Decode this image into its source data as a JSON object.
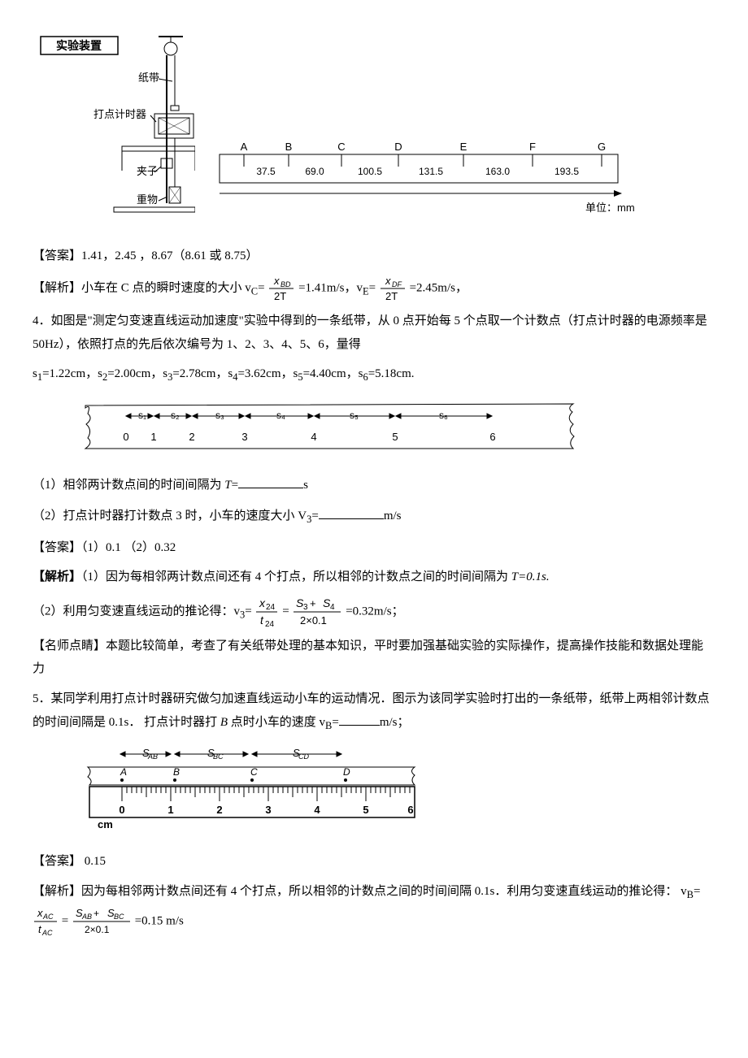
{
  "apparatus": {
    "title": "实验装置",
    "labels": {
      "tape": "纸带",
      "timer": "打点计时器",
      "clamp": "夹子",
      "weight": "重物"
    }
  },
  "tape1": {
    "points": [
      "A",
      "B",
      "C",
      "D",
      "E",
      "F",
      "G"
    ],
    "values": [
      "37.5",
      "69.0",
      "100.5",
      "131.5",
      "163.0",
      "193.5"
    ],
    "unit": "单位：mm"
  },
  "ans1": {
    "label": "【答案】",
    "text": "1.41，2.45 ，8.67（8.61 或 8.75）"
  },
  "sol1": {
    "label": "【解析】",
    "lead": "小车在 C 点的瞬时速度的大小 v",
    "sub_c": "C",
    "frac1_top": "x",
    "frac1_top_sub": "BD",
    "frac1_bot": "2T",
    "mid1": "=1.41m/s，v",
    "sub_e": "E",
    "frac2_top": "x",
    "frac2_top_sub": "DF",
    "frac2_bot": "2T",
    "mid2": "=2.45m/s，"
  },
  "q4": {
    "num": "4．",
    "p1": "如图是\"测定匀变速直线运动加速度\"实验中得到的一条纸带，从 0 点开始每 5 个点取一个计数点（打点计时器的电源频率是 50Hz），依照打点的先后依次编号为 1、2、3、4、5、6，量得",
    "p2_a": "s",
    "p2": "=1.22cm，s",
    "p2_2": "=2.00cm，s",
    "p2_3": "=2.78cm，s",
    "p2_4": "=3.62cm，s",
    "p2_5": "=4.40cm，s",
    "p2_6": "=5.18cm.",
    "tape_labels": [
      "s₁",
      "s₂",
      "s₃",
      "s₄",
      "s₅",
      "s₆"
    ],
    "tape_numbers": [
      "0",
      "1",
      "2",
      "3",
      "4",
      "5",
      "6"
    ],
    "sub1": "（1）相邻两计数点间的时间间隔为 ",
    "sub1_var": "T",
    "sub1_unit": "s",
    "sub2": "（2）打点计时器打计数点 3 时，小车的速度大小 V",
    "sub2_sub": "3",
    "sub2_unit": "m/s"
  },
  "ans4": {
    "label": "【答案】",
    "text": "（1）0.1 （2）0.32"
  },
  "sol4": {
    "label": "【解析】",
    "p1": "（1）因为每相邻两计数点间还有 4 个打点，所以相邻的计数点之间的时间间隔为 ",
    "p1_end": "T=0.1s.",
    "p2_lead": "（2）利用匀变速直线运动的推论得：v",
    "p2_sub": "3",
    "frac1_top": "x",
    "frac1_top_sub": "24",
    "frac1_bot": "t",
    "frac1_bot_sub": "24",
    "frac2_top_a": "S",
    "frac2_top_a_sub": "3",
    "frac2_plus": " + ",
    "frac2_top_b": "S",
    "frac2_top_b_sub": "4",
    "frac2_bot": "2×0.1",
    "p2_end": "=0.32m/s；"
  },
  "tip": {
    "label": "【名师点睛】",
    "text": "本题比较简单，考查了有关纸带处理的基本知识，平时要加强基础实验的实际操作，提高操作技能和数据处理能力"
  },
  "q5": {
    "num": "5．",
    "p1": "某同学利用打点计时器研究做匀加速直线运动小车的运动情况．图示为该同学实验时打出的一条纸带，纸带上两相邻计数点的时间间隔是 0.1s．  打点计时器打 ",
    "p1_i": "B",
    "p1_mid": " 点时小车的速度  v",
    "p1_sub": "B",
    "p1_unit": "m/s；",
    "ruler_labels": [
      "S",
      "S",
      "S"
    ],
    "ruler_subs": [
      "AB",
      "BC",
      "CD"
    ],
    "ruler_points": [
      "A",
      "B",
      "C",
      "D"
    ],
    "ruler_nums": [
      "0",
      "1",
      "2",
      "3",
      "4",
      "5",
      "6"
    ],
    "ruler_unit": "cm"
  },
  "ans5": {
    "label": "【答案】",
    "text": " 0.15"
  },
  "sol5": {
    "label": "【解析】",
    "p1": "因为每相邻两计数点间还有 4 个打点，所以相邻的计数点之间的时间间隔 0.1s．利用匀变速直线运动的推论得：  v",
    "sub": "B",
    "frac1_top": "x",
    "frac1_top_sub": "AC",
    "frac1_bot": "t",
    "frac1_bot_sub": "AC",
    "frac2_top_a": "S",
    "frac2_top_a_sub": "AB",
    "frac2_plus": " + ",
    "frac2_top_b": "S",
    "frac2_top_b_sub": "BC",
    "frac2_bot": "2×0.1",
    "end": "=0.15 m/s"
  }
}
